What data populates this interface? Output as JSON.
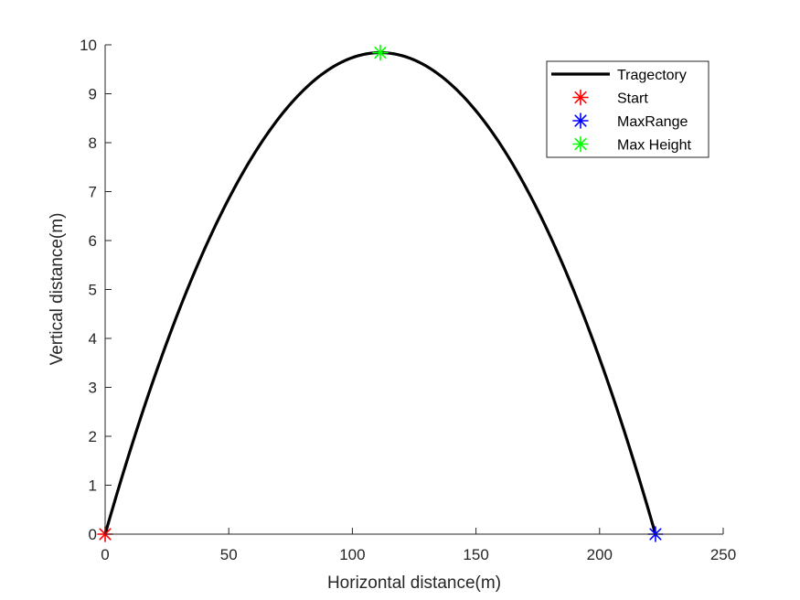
{
  "chart_data": {
    "type": "line",
    "title": "",
    "xlabel": "Horizontal distance(m)",
    "ylabel": "Vertical distance(m)",
    "xlim": [
      0,
      250
    ],
    "ylim": [
      0,
      10
    ],
    "xticks": [
      0,
      50,
      100,
      150,
      200,
      250
    ],
    "yticks": [
      0,
      1,
      2,
      3,
      4,
      5,
      6,
      7,
      8,
      9,
      10
    ],
    "xtick_labels": [
      "0",
      "50",
      "100",
      "150",
      "200",
      "250"
    ],
    "ytick_labels": [
      "0",
      "1",
      "2",
      "3",
      "4",
      "5",
      "6",
      "7",
      "8",
      "9",
      "10"
    ],
    "grid": false,
    "legend_position": "top-right",
    "series": [
      {
        "name": "Tragectory",
        "kind": "line",
        "color": "#000000",
        "curve": "parabola",
        "x_range": [
          0,
          222.6
        ],
        "peak": [
          111.3,
          9.84
        ]
      },
      {
        "name": "Start",
        "kind": "marker",
        "marker": "asterisk",
        "color": "#ff0000",
        "x": [
          0
        ],
        "y": [
          0
        ]
      },
      {
        "name": "MaxRange",
        "kind": "marker",
        "marker": "asterisk",
        "color": "#0000ff",
        "x": [
          222.6
        ],
        "y": [
          0
        ]
      },
      {
        "name": "Max Height",
        "kind": "marker",
        "marker": "asterisk",
        "color": "#00ff00",
        "x": [
          111.3
        ],
        "y": [
          9.84
        ]
      }
    ]
  }
}
